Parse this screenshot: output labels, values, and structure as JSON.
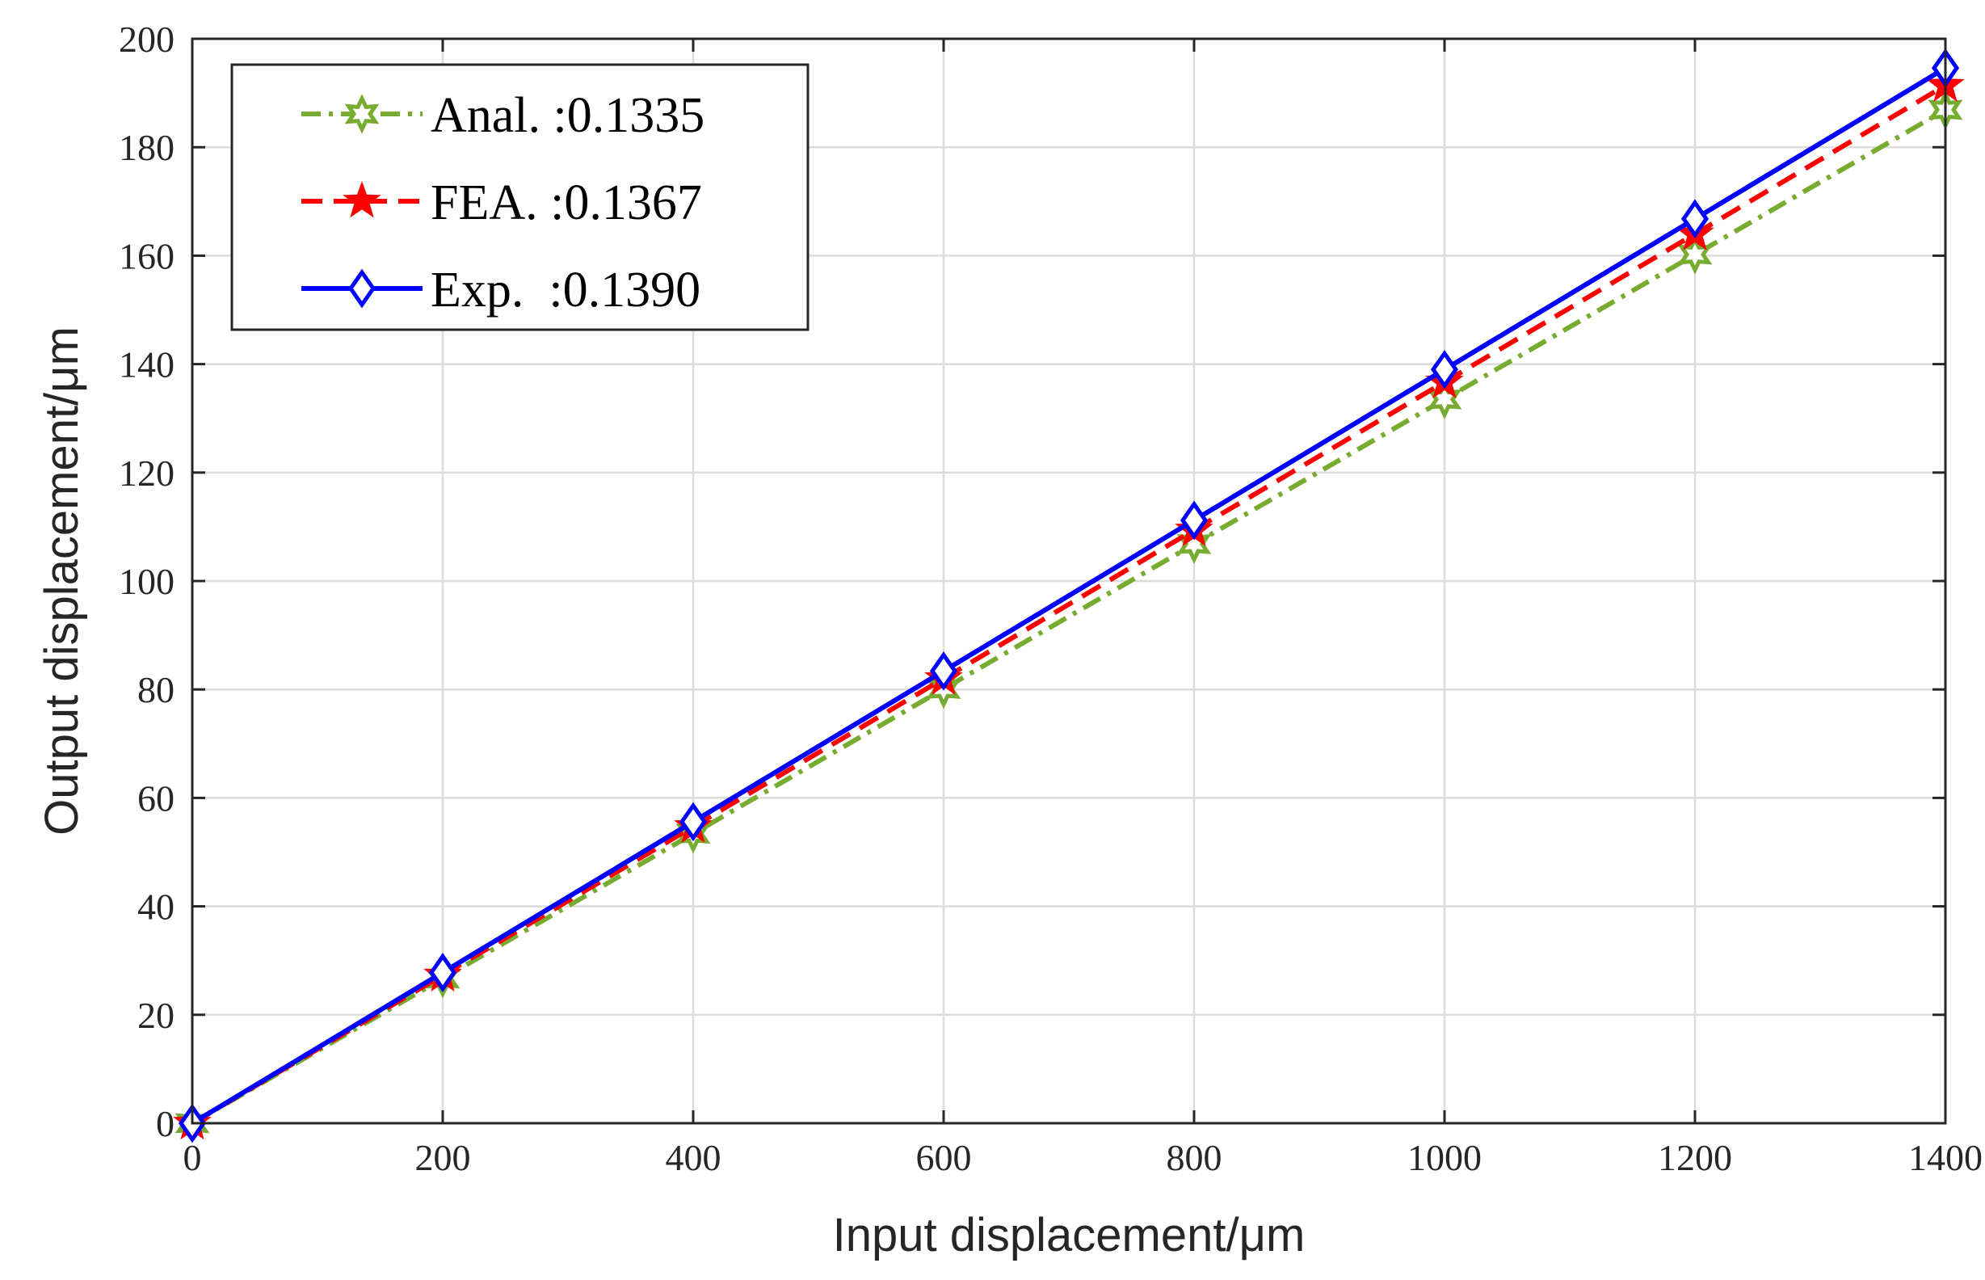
{
  "chart_data": {
    "type": "line",
    "xlabel": "Input displacement/μm",
    "ylabel": "Output displacement/μm",
    "xlim": [
      0,
      1400
    ],
    "ylim": [
      0,
      200
    ],
    "xticks": [
      0,
      200,
      400,
      600,
      800,
      1000,
      1200,
      1400
    ],
    "yticks": [
      0,
      20,
      40,
      60,
      80,
      100,
      120,
      140,
      160,
      180,
      200
    ],
    "grid": true,
    "legend_position": "top-left",
    "x": [
      0,
      200,
      400,
      600,
      800,
      1000,
      1200,
      1400
    ],
    "series": [
      {
        "name": "Anal. :0.1335",
        "values": [
          0,
          26.7,
          53.4,
          80.1,
          106.8,
          133.5,
          160.2,
          186.9
        ],
        "color": "#77ac30",
        "line_style": "dash-dot",
        "marker": "hexagram"
      },
      {
        "name": "FEA. :0.1367",
        "values": [
          0,
          27.3,
          54.7,
          82.0,
          109.4,
          136.7,
          164.0,
          191.4
        ],
        "color": "#ff0000",
        "line_style": "dashed",
        "marker": "pentagram"
      },
      {
        "name": "Exp.  :0.1390",
        "values": [
          0,
          27.8,
          55.6,
          83.4,
          111.2,
          139.0,
          166.8,
          194.6
        ],
        "color": "#0000ff",
        "line_style": "solid",
        "marker": "diamond"
      }
    ]
  }
}
